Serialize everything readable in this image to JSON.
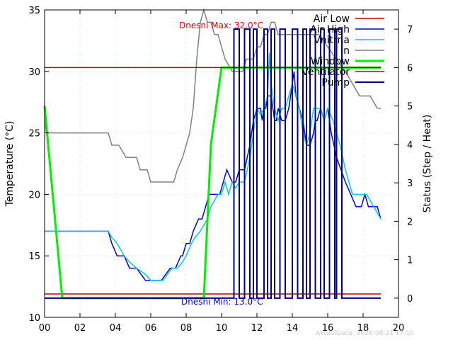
{
  "chart_data": {
    "type": "line",
    "title": "",
    "xlabel": "",
    "ylabel": "Temperature (°C)",
    "y2label": "Status (Step / Heat)",
    "xlim": [
      0,
      20
    ],
    "ylim": [
      10,
      35
    ],
    "y2lim": [
      -0.5,
      7.5
    ],
    "x_ticks": [
      "00",
      "02",
      "04",
      "06",
      "08",
      "10",
      "12",
      "14",
      "16",
      "18",
      "20"
    ],
    "y_ticks": [
      "10",
      "15",
      "20",
      "25",
      "30",
      "35"
    ],
    "y2_ticks": [
      "0",
      "1",
      "2",
      "3",
      "4",
      "5",
      "6",
      "7"
    ],
    "grid": true,
    "legend_position": "top-right",
    "annotations": {
      "max": "Dnesni Max: 32.0°C",
      "min": "Dnesni Min: 13.0°C",
      "updated": "Aktualizace: 2026-08-21 17:10"
    },
    "series": [
      {
        "name": "Air Low",
        "axis": "left",
        "color": "#c00000",
        "x": [
          0,
          19
        ],
        "y": [
          11.9,
          11.9
        ]
      },
      {
        "name": "Air High",
        "axis": "left",
        "color": "#0000cc",
        "x": [
          0,
          3.6,
          3.8,
          4.1,
          4.5,
          4.8,
          5.2,
          5.7,
          5.9,
          6.2,
          6.6,
          7.1,
          7.4,
          7.7,
          7.8,
          8.0,
          8.2,
          8.4,
          8.7,
          8.9,
          9.1,
          9.3,
          9.6,
          9.9,
          10.1,
          10.3,
          10.6,
          10.8,
          11.0,
          11.3,
          11.6,
          11.8,
          12.0,
          12.1,
          12.2,
          12.3,
          12.4,
          12.5,
          12.6,
          12.7,
          12.8,
          12.9,
          13.0,
          13.1,
          13.2,
          13.4,
          13.6,
          13.8,
          14.0,
          14.1,
          14.2,
          14.4,
          14.6,
          14.8,
          15.0,
          15.2,
          15.3,
          15.4,
          15.6,
          15.8,
          16.0,
          16.2,
          16.5,
          17.0,
          17.3,
          17.6,
          17.9,
          18.1,
          18.3,
          18.5,
          18.8,
          19.0
        ],
        "y": [
          17,
          17,
          16,
          15,
          15,
          14,
          14,
          13,
          13,
          13,
          13,
          14,
          14,
          15,
          15,
          16,
          16,
          17,
          18,
          18,
          19,
          20,
          20,
          20,
          21,
          22,
          21,
          21,
          22,
          22,
          24,
          26,
          27,
          27,
          27,
          26,
          27,
          27,
          28,
          28,
          28,
          27,
          26,
          26,
          27,
          26,
          26,
          27,
          29,
          30,
          28,
          27,
          26,
          24,
          24,
          25,
          26,
          26,
          27,
          26,
          27,
          25,
          23,
          21,
          20,
          19,
          19,
          20,
          19,
          19,
          19,
          18
        ]
      },
      {
        "name": "Vnitrna",
        "axis": "left",
        "color": "#00cccc",
        "x": [
          0,
          3.6,
          3.8,
          4.1,
          4.5,
          4.8,
          5.2,
          5.7,
          6.0,
          6.3,
          6.7,
          7.2,
          7.5,
          7.8,
          8.0,
          8.3,
          8.5,
          8.8,
          9.0,
          9.2,
          9.4,
          9.6,
          9.8,
          10.0,
          10.2,
          10.4,
          10.6,
          10.8,
          11.0,
          11.3,
          11.6,
          11.8,
          12.0,
          12.2,
          12.4,
          12.6,
          12.7,
          12.8,
          12.9,
          13.0,
          13.2,
          13.4,
          13.6,
          13.8,
          14.0,
          14.2,
          14.4,
          14.6,
          14.8,
          15.0,
          15.2,
          15.4,
          15.6,
          15.8,
          16.0,
          16.3,
          16.7,
          17.0,
          17.4,
          17.8,
          18.2,
          18.6,
          19.0
        ],
        "y": [
          17,
          17,
          16.5,
          16,
          15,
          14.5,
          14,
          13.5,
          13,
          13,
          13,
          14,
          14,
          14.5,
          15,
          16,
          16.5,
          17,
          17.5,
          18,
          19,
          19.5,
          20,
          20,
          21,
          20,
          21,
          20.5,
          21,
          21,
          23,
          25,
          27,
          26.5,
          27,
          28,
          31.5,
          29,
          28,
          27,
          26,
          27,
          27,
          28,
          29,
          28,
          27,
          25,
          24,
          25,
          27,
          27,
          27,
          26,
          27,
          26,
          24,
          22,
          20,
          20,
          20,
          19,
          18
        ]
      },
      {
        "name": "in",
        "axis": "left",
        "color": "#808080",
        "x": [
          0,
          0.1,
          3.6,
          3.8,
          4.2,
          4.6,
          5.2,
          5.4,
          5.8,
          6.0,
          7.3,
          7.5,
          7.8,
          8.0,
          8.2,
          8.4,
          8.6,
          8.8,
          9.0,
          9.2,
          9.4,
          9.6,
          9.8,
          10.0,
          10.2,
          10.6,
          10.8,
          11.0,
          11.2,
          11.4,
          11.6,
          11.8,
          12.0,
          12.2,
          12.4,
          12.6,
          12.8,
          13.0,
          13.2,
          13.4,
          13.6,
          13.8,
          14.0,
          14.5,
          15.0,
          15.5,
          16.0,
          16.5,
          17.0,
          17.4,
          17.8,
          18.0,
          18.4,
          18.8,
          19.0
        ],
        "y": [
          26,
          25,
          25,
          24,
          24,
          23,
          23,
          22,
          22,
          21,
          21,
          22,
          23,
          24,
          25,
          27,
          31,
          34,
          35,
          34,
          34,
          33,
          33,
          32,
          31,
          30,
          30,
          30,
          30,
          31,
          31,
          31,
          32,
          32,
          33,
          33,
          34,
          34,
          33,
          33,
          33,
          33,
          33,
          33,
          33,
          33,
          32,
          31,
          30,
          29,
          28,
          28,
          28,
          27,
          27
        ]
      },
      {
        "name": "Window",
        "axis": "right",
        "color": "#00ee00",
        "x": [
          0,
          0.2,
          0.4,
          0.6,
          0.8,
          1.0,
          9.0,
          9.2,
          9.4,
          9.7,
          10.0,
          19.0
        ],
        "y": [
          5,
          4,
          3,
          2,
          1,
          0,
          0,
          2,
          4,
          5,
          6,
          6
        ]
      },
      {
        "name": "Ventilator",
        "axis": "right",
        "color": "#c00000",
        "x": [
          0,
          19
        ],
        "y": [
          6,
          6
        ]
      },
      {
        "name": "Pump",
        "axis": "right",
        "color": "#000080",
        "on_intervals": [
          [
            10.7,
            11.0
          ],
          [
            11.3,
            11.6
          ],
          [
            11.8,
            12.0
          ],
          [
            12.4,
            12.6
          ],
          [
            12.8,
            13.0
          ],
          [
            13.3,
            13.6
          ],
          [
            14.0,
            14.3
          ],
          [
            14.6,
            14.8
          ],
          [
            15.0,
            15.3
          ],
          [
            15.6,
            15.8
          ],
          [
            16.1,
            16.4
          ],
          [
            16.5,
            16.8
          ]
        ],
        "on_value": 7,
        "off_value": 0,
        "x_end": 19
      }
    ]
  }
}
